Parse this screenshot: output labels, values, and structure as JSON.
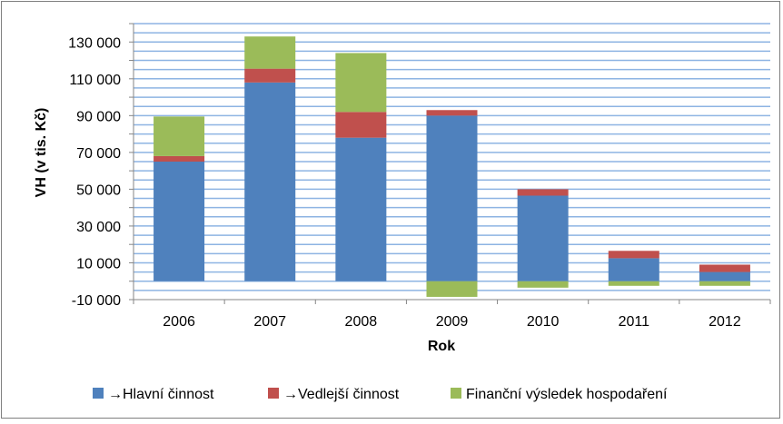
{
  "chart_data": {
    "type": "bar",
    "stacked": true,
    "categories": [
      "2006",
      "2007",
      "2008",
      "2009",
      "2010",
      "2011",
      "2012"
    ],
    "series": [
      {
        "name": "→Hlavní činnost",
        "color": "#4f81bd",
        "values": [
          65000,
          108000,
          78000,
          90000,
          46500,
          12500,
          5000
        ]
      },
      {
        "name": "→Vedlejší činnost",
        "color": "#c0504d",
        "values": [
          3000,
          7500,
          14000,
          3000,
          3500,
          4000,
          4000
        ]
      },
      {
        "name": "Finanční výsledek hospodaření",
        "color": "#9bbb59",
        "values": [
          21500,
          17500,
          32000,
          -8500,
          -3500,
          -2500,
          -2500
        ]
      }
    ],
    "xlabel": "Rok",
    "ylabel": "VH (v tis. Kč)",
    "ylim": [
      -10000,
      140000
    ],
    "yticks": [
      -10000,
      10000,
      30000,
      50000,
      70000,
      90000,
      110000,
      130000
    ],
    "ytick_labels": [
      "-10 000",
      "10 000",
      "30 000",
      "50 000",
      "70 000",
      "90 000",
      "110 000",
      "130 000"
    ],
    "gridline_step": 5000,
    "grid": true,
    "grid_color": "#8eb4e3",
    "legend_position": "bottom"
  }
}
